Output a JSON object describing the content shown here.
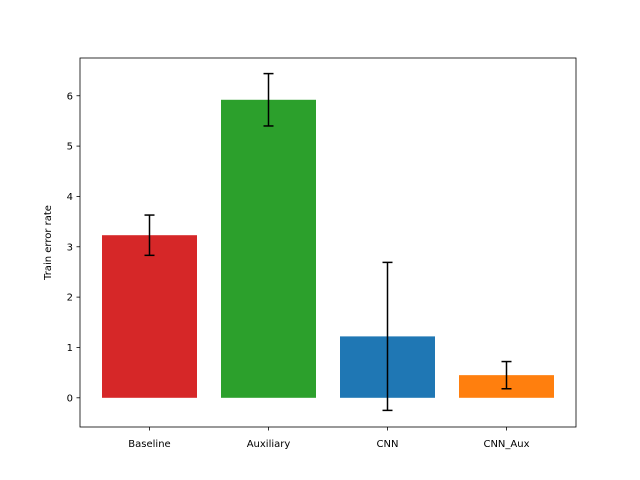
{
  "chart_data": {
    "type": "bar",
    "title": "",
    "xlabel": "",
    "ylabel": "Train error rate",
    "categories": [
      "Baseline",
      "Auxiliary",
      "CNN",
      "CNN_Aux"
    ],
    "values": [
      3.23,
      5.92,
      1.22,
      0.45
    ],
    "errors": [
      0.4,
      0.52,
      1.47,
      0.27
    ],
    "colors": [
      "#d62728",
      "#2ca02c",
      "#1f77b4",
      "#ff7f0e"
    ],
    "ylim": [
      -0.58,
      6.75
    ],
    "yticks": [
      0,
      1,
      2,
      3,
      4,
      5,
      6
    ],
    "grid": false,
    "legend": "none"
  }
}
